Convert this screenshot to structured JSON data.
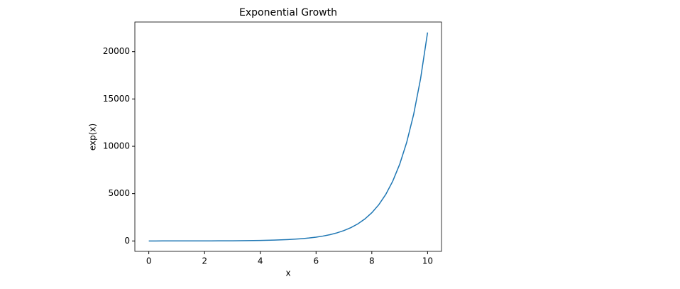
{
  "chart_data": {
    "type": "line",
    "title": "Exponential Growth",
    "x_label": "x",
    "y_label": "exp(x)",
    "x": [
      0,
      0.25,
      0.5,
      0.75,
      1,
      1.25,
      1.5,
      1.75,
      2,
      2.25,
      2.5,
      2.75,
      3,
      3.25,
      3.5,
      3.75,
      4,
      4.25,
      4.5,
      4.75,
      5,
      5.25,
      5.5,
      5.75,
      6,
      6.25,
      6.5,
      6.75,
      7,
      7.25,
      7.5,
      7.75,
      8,
      8.25,
      8.5,
      8.75,
      9,
      9.25,
      9.5,
      9.75,
      10
    ],
    "series": [
      {
        "name": "exp(x)",
        "color": "#1f77b4",
        "values": [
          1,
          1.28,
          1.65,
          2.12,
          2.72,
          3.49,
          4.48,
          5.75,
          7.39,
          9.49,
          12.2,
          15.6,
          20.1,
          25.8,
          33.1,
          42.5,
          54.6,
          70.1,
          90,
          116,
          148,
          191,
          245,
          314,
          403,
          518,
          665,
          854,
          1097,
          1408,
          1808,
          2322,
          2981,
          3828,
          4915,
          6311,
          8103,
          10405,
          13360,
          17154,
          22026
        ]
      }
    ],
    "xlim": [
      -0.5,
      10.5
    ],
    "ylim": [
      -1100,
      23130
    ],
    "xticks": [
      0,
      2,
      4,
      6,
      8,
      10
    ],
    "yticks": [
      0,
      5000,
      10000,
      15000,
      20000
    ],
    "grid": false
  }
}
